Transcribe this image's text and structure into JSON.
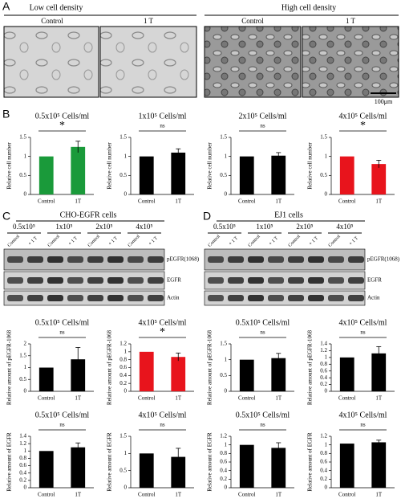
{
  "panels": {
    "a": {
      "letter": "A",
      "low": "Low cell density",
      "high": "High cell density",
      "labels": [
        "Control",
        "1 T",
        "Control",
        "1 T"
      ],
      "scale": "100μm"
    },
    "b": {
      "letter": "B"
    },
    "c": {
      "letter": "C",
      "title": "CHO-EGFR cells",
      "groups": [
        "0.5x10⁵",
        "1x10⁵",
        "2x10⁵",
        "4x10⁵"
      ],
      "lanes": [
        "Control",
        "+ 1 T"
      ],
      "blots": [
        "pEGFR(1068)",
        "EGFR",
        "Actin"
      ]
    },
    "d": {
      "letter": "D",
      "title": "EJ1 cells",
      "groups": [
        "0.5x10⁵",
        "1x10⁵",
        "2x10⁵",
        "4x10⁵"
      ],
      "lanes": [
        "Control",
        "+ 1 T"
      ],
      "blots": [
        "pEGFR(1068)",
        "EGFR",
        "Actin"
      ]
    }
  },
  "chart_data": [
    {
      "type": "bar",
      "title": "0.5x10⁵ Cells/ml",
      "significance": "*",
      "ylabel": "Relative cell number",
      "categories": [
        "Control",
        "1T"
      ],
      "values": [
        1,
        1.25
      ],
      "errors": [
        0,
        0.15
      ],
      "color": "#1a9a3a",
      "ylim": [
        0,
        1.5
      ],
      "yticks": [
        0,
        0.5,
        1,
        1.5
      ]
    },
    {
      "type": "bar",
      "title": "1x10⁵ Cells/ml",
      "significance": "ns",
      "ylabel": "Relative cell number",
      "categories": [
        "Control",
        "1T"
      ],
      "values": [
        1,
        1.1
      ],
      "errors": [
        0,
        0.1
      ],
      "color": "#000000",
      "ylim": [
        0,
        1.5
      ],
      "yticks": [
        0,
        0.5,
        1,
        1.5
      ]
    },
    {
      "type": "bar",
      "title": "2x10⁵ Cells/ml",
      "significance": "ns",
      "ylabel": "Relative cell number",
      "categories": [
        "Control",
        "1T"
      ],
      "values": [
        1,
        1.02
      ],
      "errors": [
        0,
        0.08
      ],
      "color": "#000000",
      "ylim": [
        0,
        1.5
      ],
      "yticks": [
        0,
        0.5,
        1,
        1.5
      ]
    },
    {
      "type": "bar",
      "title": "4x10⁵ Cells/ml",
      "significance": "*",
      "ylabel": "Relative cell number",
      "categories": [
        "Control",
        "1T"
      ],
      "values": [
        1,
        0.8
      ],
      "errors": [
        0,
        0.1
      ],
      "color": "#e8141c",
      "ylim": [
        0,
        1.5
      ],
      "yticks": [
        0,
        0.5,
        1,
        1.5
      ]
    },
    {
      "type": "bar",
      "title": "0.5x10⁵ Cells/ml",
      "significance": "ns",
      "ylabel": "Relative amount of pEGFR-1068",
      "categories": [
        "Control",
        "1T"
      ],
      "values": [
        1,
        1.35
      ],
      "errors": [
        0,
        0.5
      ],
      "color": "#000000",
      "ylim": [
        0,
        2
      ],
      "yticks": [
        0,
        0.5,
        1,
        1.5,
        2
      ]
    },
    {
      "type": "bar",
      "title": "4x10⁵ Cells/ml",
      "significance": "*",
      "ylabel": "Relative amount of pEGFR-1068",
      "categories": [
        "Control",
        "1T"
      ],
      "values": [
        1,
        0.87
      ],
      "errors": [
        0,
        0.1
      ],
      "color": "#e8141c",
      "ylim": [
        0,
        1.2
      ],
      "yticks": [
        0,
        0.2,
        0.4,
        0.6,
        0.8,
        1,
        1.2
      ]
    },
    {
      "type": "bar",
      "title": "0.5x10⁵ Cells/ml",
      "significance": "ns",
      "ylabel": "Relative amount of EGFR",
      "categories": [
        "Control",
        "1T"
      ],
      "values": [
        1,
        1.1
      ],
      "errors": [
        0,
        0.12
      ],
      "color": "#000000",
      "ylim": [
        0,
        1.4
      ],
      "yticks": [
        0,
        0.2,
        0.4,
        0.6,
        0.8,
        1,
        1.2,
        1.4
      ]
    },
    {
      "type": "bar",
      "title": "4x10⁵ Cells/ml",
      "significance": "ns",
      "ylabel": "Relative amount of EGFR",
      "categories": [
        "Control",
        "1T"
      ],
      "values": [
        1,
        0.9
      ],
      "errors": [
        0,
        0.25
      ],
      "color": "#000000",
      "ylim": [
        0,
        1.5
      ],
      "yticks": [
        0,
        0.5,
        1,
        1.5
      ]
    },
    {
      "type": "bar",
      "title": "0.5x10⁵ Cells/ml",
      "significance": "ns",
      "ylabel": "Relative amount of pEGFR-1068",
      "categories": [
        "Control",
        "1T"
      ],
      "values": [
        1,
        1.05
      ],
      "errors": [
        0,
        0.15
      ],
      "color": "#000000",
      "ylim": [
        0,
        1.5
      ],
      "yticks": [
        0,
        0.5,
        1,
        1.5
      ]
    },
    {
      "type": "bar",
      "title": "4x10⁵ Cells/ml",
      "significance": "ns",
      "ylabel": "Relative amount of pEGFR-1068",
      "categories": [
        "Control",
        "1T"
      ],
      "values": [
        1,
        1.12
      ],
      "errors": [
        0,
        0.2
      ],
      "color": "#000000",
      "ylim": [
        0,
        1.4
      ],
      "yticks": [
        0,
        0.2,
        0.4,
        0.6,
        0.8,
        1,
        1.2,
        1.4
      ]
    },
    {
      "type": "bar",
      "title": "0.5x10⁵ Cells/ml",
      "significance": "ns",
      "ylabel": "Relative amount of EGFR",
      "categories": [
        "Control",
        "1T"
      ],
      "values": [
        1,
        0.93
      ],
      "errors": [
        0,
        0.12
      ],
      "color": "#000000",
      "ylim": [
        0,
        1.2
      ],
      "yticks": [
        0,
        0.2,
        0.4,
        0.6,
        0.8,
        1,
        1.2
      ]
    },
    {
      "type": "bar",
      "title": "4x10⁵ Cells/ml",
      "significance": "ns",
      "ylabel": "Relative amount of EGFR",
      "categories": [
        "Control",
        "1T"
      ],
      "values": [
        1.03,
        1.06
      ],
      "errors": [
        0,
        0.05
      ],
      "color": "#000000",
      "ylim": [
        0,
        1.2
      ],
      "yticks": [
        0,
        0.2,
        0.4,
        0.6,
        0.8,
        1,
        1.2
      ]
    }
  ]
}
